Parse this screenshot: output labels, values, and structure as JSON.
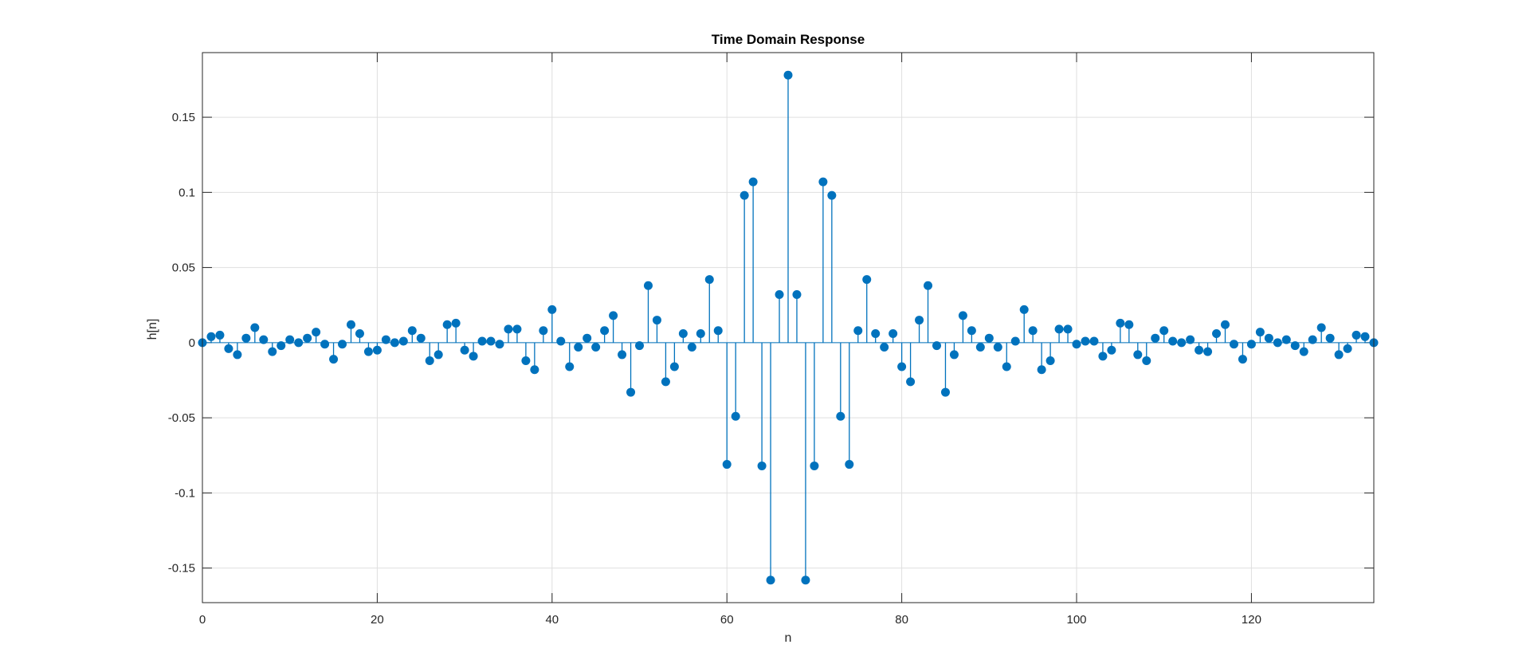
{
  "chart_data": {
    "type": "stem",
    "title": "Time Domain Response",
    "xlabel": "n",
    "ylabel": "h[n]",
    "xlim": [
      0,
      134
    ],
    "ylim": [
      -0.173,
      0.193
    ],
    "grid": true,
    "xticks": [
      0,
      20,
      40,
      60,
      80,
      100,
      120
    ],
    "xtick_labels": [
      "0",
      "20",
      "40",
      "60",
      "80",
      "100",
      "120"
    ],
    "yticks": [
      -0.15,
      -0.1,
      -0.05,
      0,
      0.05,
      0.1,
      0.15
    ],
    "ytick_labels": [
      "-0.15",
      "-0.1",
      "-0.05",
      "0",
      "0.05",
      "0.1",
      "0.15"
    ],
    "series": [
      {
        "color": "#0072BD",
        "x": [
          0,
          1,
          2,
          3,
          4,
          5,
          6,
          7,
          8,
          9,
          10,
          11,
          12,
          13,
          14,
          15,
          16,
          17,
          18,
          19,
          20,
          21,
          22,
          23,
          24,
          25,
          26,
          27,
          28,
          29,
          30,
          31,
          32,
          33,
          34,
          35,
          36,
          37,
          38,
          39,
          40,
          41,
          42,
          43,
          44,
          45,
          46,
          47,
          48,
          49,
          50,
          51,
          52,
          53,
          54,
          55,
          56,
          57,
          58,
          59,
          60,
          61,
          62,
          63,
          64,
          65,
          66,
          67,
          68,
          69,
          70,
          71,
          72,
          73,
          74,
          75,
          76,
          77,
          78,
          79,
          80,
          81,
          82,
          83,
          84,
          85,
          86,
          87,
          88,
          89,
          90,
          91,
          92,
          93,
          94,
          95,
          96,
          97,
          98,
          99,
          100,
          101,
          102,
          103,
          104,
          105,
          106,
          107,
          108,
          109,
          110,
          111,
          112,
          113,
          114,
          115,
          116,
          117,
          118,
          119,
          120,
          121,
          122,
          123,
          124,
          125,
          126,
          127,
          128,
          129,
          130,
          131,
          132,
          133,
          134
        ],
        "values": [
          0,
          0.004,
          0.005,
          -0.004,
          -0.008,
          0.003,
          0.01,
          0.002,
          -0.006,
          -0.002,
          0.002,
          0,
          0.003,
          0.007,
          -0.001,
          -0.011,
          -0.001,
          0.012,
          0.006,
          -0.006,
          -0.005,
          0.002,
          0,
          0.001,
          0.008,
          0.003,
          -0.012,
          -0.008,
          0.012,
          0.013,
          -0.005,
          -0.009,
          0.001,
          0.001,
          -0.001,
          0.009,
          0.009,
          -0.012,
          -0.018,
          0.008,
          0.022,
          0.001,
          -0.016,
          -0.003,
          0.003,
          -0.003,
          0.008,
          0.018,
          -0.008,
          -0.033,
          -0.002,
          0.038,
          0.015,
          -0.026,
          -0.016,
          0.006,
          -0.003,
          0.006,
          0.042,
          0.008,
          -0.081,
          -0.049,
          0.098,
          0.107,
          -0.082,
          -0.158,
          0.032,
          0.178,
          0.032,
          -0.158,
          -0.082,
          0.107,
          0.098,
          -0.049,
          -0.081,
          0.008,
          0.042,
          0.006,
          -0.003,
          0.006,
          -0.016,
          -0.026,
          0.015,
          0.038,
          -0.002,
          -0.033,
          -0.008,
          0.018,
          0.008,
          -0.003,
          0.003,
          -0.003,
          -0.016,
          0.001,
          0.022,
          0.008,
          -0.018,
          -0.012,
          0.009,
          0.009,
          -0.001,
          0.001,
          0.001,
          -0.009,
          -0.005,
          0.013,
          0.012,
          -0.008,
          -0.012,
          0.003,
          0.008,
          0.001,
          0,
          0.002,
          -0.005,
          -0.006,
          0.006,
          0.012,
          -0.001,
          -0.011,
          -0.001,
          0.007,
          0.003,
          0,
          0.002,
          -0.002,
          -0.006,
          0.002,
          0.01,
          0.003,
          -0.008,
          -0.004,
          0.005,
          0.004,
          0
        ]
      }
    ]
  }
}
